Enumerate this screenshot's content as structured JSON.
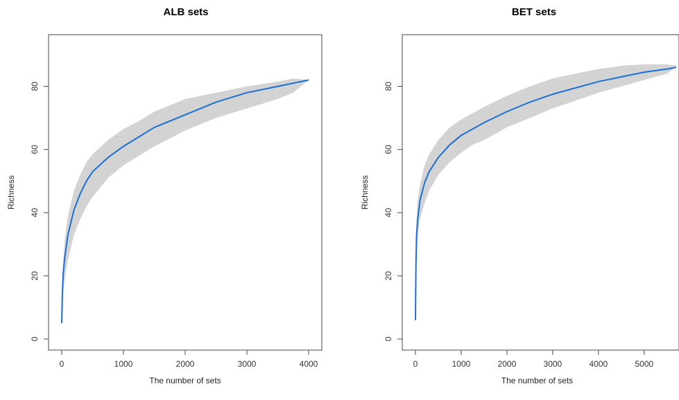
{
  "chart_data": [
    {
      "type": "area",
      "title": "ALB sets",
      "xlabel": "The number of sets",
      "ylabel": "Richness",
      "xlim": [
        0,
        4000
      ],
      "ylim": [
        0,
        90
      ],
      "xticks": [
        "0",
        "1000",
        "2000",
        "3000",
        "4000"
      ],
      "yticks": [
        "0",
        "20",
        "40",
        "60",
        "80"
      ],
      "grid": false,
      "colors": {
        "line": "#1a6fd6",
        "band": "#d3d3d3"
      },
      "series": [
        {
          "x": [
            0,
            10,
            25,
            50,
            100,
            200,
            300,
            400,
            500,
            750,
            1000,
            1250,
            1500,
            2000,
            2500,
            3000,
            3500,
            3750,
            4000
          ],
          "y": [
            5,
            14,
            21,
            26,
            33,
            41,
            46,
            50,
            53,
            57.5,
            61,
            64,
            67,
            71,
            75,
            78,
            80,
            81,
            82
          ],
          "lower": [
            5,
            10,
            15,
            19,
            25,
            33,
            38,
            42,
            45,
            51,
            55,
            58,
            61,
            66,
            70,
            73,
            76,
            78,
            82
          ],
          "upper": [
            5,
            17,
            25,
            32,
            39,
            47,
            52,
            56,
            58.5,
            63,
            66.5,
            69,
            72,
            76,
            78,
            80,
            81.5,
            82.5,
            82
          ]
        }
      ]
    },
    {
      "type": "area",
      "title": "BET sets",
      "xlabel": "The number of sets",
      "ylabel": "Richness",
      "xlim": [
        0,
        5700
      ],
      "ylim": [
        0,
        90
      ],
      "xticks": [
        "0",
        "1000",
        "2000",
        "3000",
        "4000",
        "5000"
      ],
      "yticks": [
        "0",
        "20",
        "40",
        "60",
        "80"
      ],
      "grid": false,
      "colors": {
        "line": "#1a6fd6",
        "band": "#d3d3d3"
      },
      "series": [
        {
          "x": [
            0,
            10,
            25,
            50,
            100,
            200,
            300,
            500,
            750,
            1000,
            1250,
            1500,
            2000,
            2500,
            3000,
            3500,
            4000,
            4500,
            5000,
            5500,
            5700
          ],
          "y": [
            6,
            23,
            33,
            38,
            44,
            49.5,
            53,
            57.5,
            61.5,
            64.5,
            66.5,
            68.5,
            72,
            75,
            77.5,
            79.5,
            81.5,
            83,
            84.5,
            85.5,
            86
          ],
          "lower": [
            6,
            17,
            26,
            32,
            38,
            43,
            47,
            52,
            56,
            59,
            61.5,
            63,
            67,
            70,
            73,
            75.5,
            78,
            80,
            82,
            84,
            86
          ],
          "upper": [
            6,
            28,
            38,
            44,
            49,
            55,
            58.5,
            63,
            67,
            69.5,
            71.5,
            73.5,
            77,
            80,
            82.5,
            84,
            85.5,
            86.5,
            87,
            87,
            86.5
          ]
        }
      ]
    }
  ]
}
